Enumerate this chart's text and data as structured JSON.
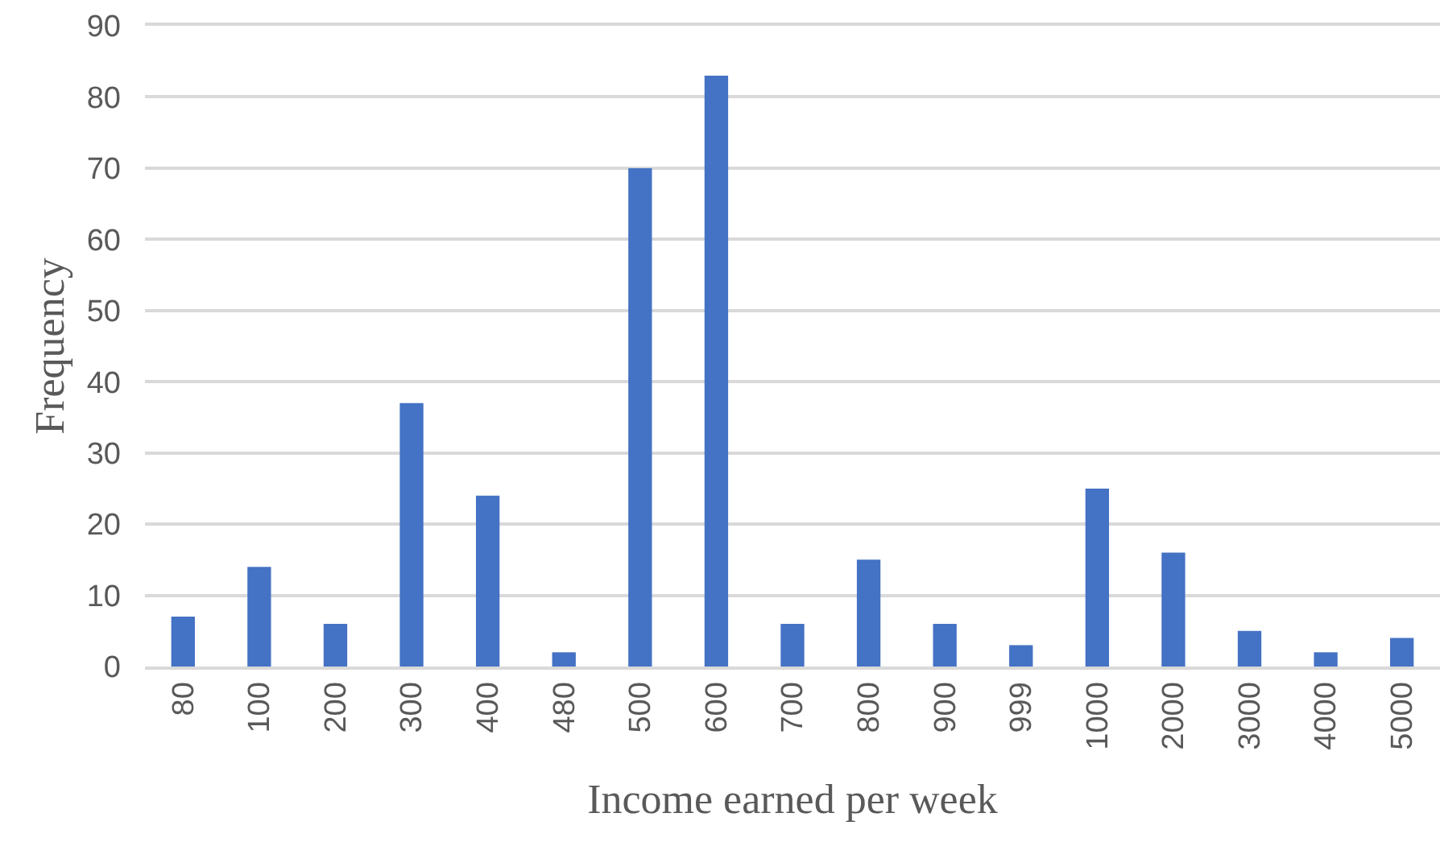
{
  "chart_data": {
    "type": "bar",
    "xlabel": "Income earned per week",
    "ylabel": "Frequency",
    "categories": [
      "80",
      "100",
      "200",
      "300",
      "400",
      "480",
      "500",
      "600",
      "700",
      "800",
      "900",
      "999",
      "1000",
      "2000",
      "3000",
      "4000",
      "5000"
    ],
    "values": [
      7,
      14,
      6,
      37,
      24,
      2,
      70,
      83,
      6,
      15,
      6,
      3,
      25,
      16,
      5,
      2,
      4
    ],
    "color": "#4472c4",
    "ylim": [
      0,
      90
    ],
    "yticks": [
      0,
      10,
      20,
      30,
      40,
      50,
      60,
      70,
      80,
      90
    ],
    "grid": "y"
  }
}
